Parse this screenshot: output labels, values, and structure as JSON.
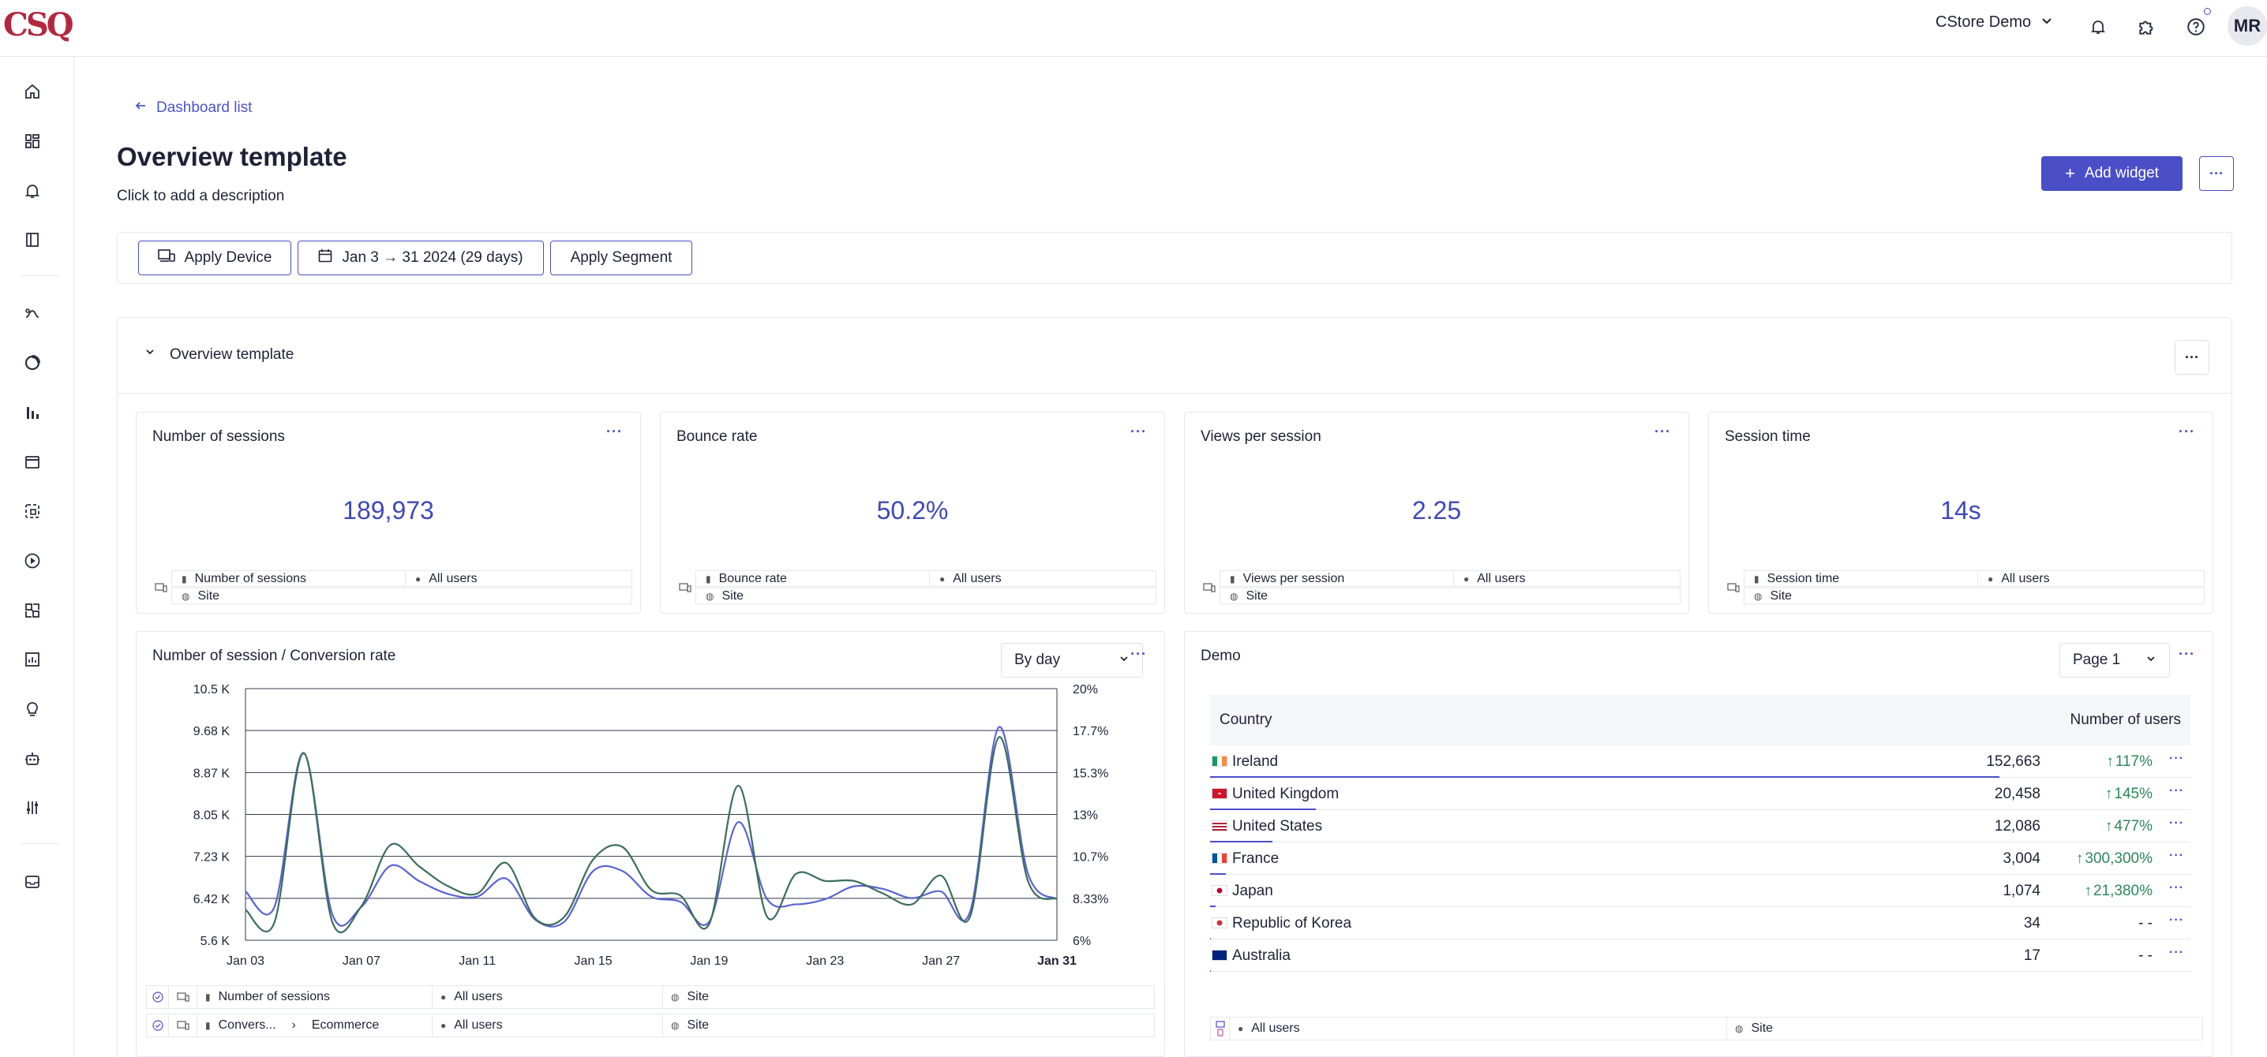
{
  "topbar": {
    "logo": "CSQ",
    "project": "CStore Demo",
    "avatar_initials": "MR",
    "icons": [
      "bell-icon",
      "puzzle-icon",
      "help-icon"
    ]
  },
  "sidebar": {
    "icons": [
      "home-icon",
      "dashboards-icon",
      "alerts-icon",
      "mapping-icon",
      "journey-icon",
      "zoning-icon",
      "analytics-icon",
      "page-comparator-icon",
      "impact-icon",
      "session-replay-icon",
      "merchandising-icon",
      "reports-icon",
      "insights-icon",
      "bot-icon",
      "settings-sliders-icon",
      "inbox-icon"
    ]
  },
  "header": {
    "back_label": "Dashboard list",
    "title": "Overview template",
    "description": "Click to add a description",
    "add_widget_label": "Add widget",
    "more_label": "···"
  },
  "filters": {
    "device_label": "Apply Device",
    "date_label": "Jan 3 → 31 2024 (29 days)",
    "segment_label": "Apply Segment"
  },
  "section": {
    "title": "Overview template",
    "more_label": "···"
  },
  "kpis": [
    {
      "title": "Number of sessions",
      "value": "189,973",
      "metric": "Number of sessions",
      "segment": "All users",
      "scope": "Site"
    },
    {
      "title": "Bounce rate",
      "value": "50.2%",
      "metric": "Bounce rate",
      "segment": "All users",
      "scope": "Site"
    },
    {
      "title": "Views per session",
      "value": "2.25",
      "metric": "Views per session",
      "segment": "All users",
      "scope": "Site"
    },
    {
      "title": "Session time",
      "value": "14s",
      "metric": "Session time",
      "segment": "All users",
      "scope": "Site"
    }
  ],
  "line_widget": {
    "title": "Number of session / Conversion rate",
    "granularity": "By day",
    "rows": [
      {
        "metric": "Number of sessions",
        "extra": "",
        "segment": "All users",
        "scope": "Site"
      },
      {
        "metric": "Convers...",
        "extra": "Ecommerce",
        "segment": "All users",
        "scope": "Site"
      }
    ]
  },
  "chart_data": {
    "type": "line",
    "title": "Number of session / Conversion rate",
    "x": [
      "Jan 03",
      "Jan 04",
      "Jan 05",
      "Jan 06",
      "Jan 07",
      "Jan 08",
      "Jan 09",
      "Jan 10",
      "Jan 11",
      "Jan 12",
      "Jan 13",
      "Jan 14",
      "Jan 15",
      "Jan 16",
      "Jan 17",
      "Jan 18",
      "Jan 19",
      "Jan 20",
      "Jan 21",
      "Jan 22",
      "Jan 23",
      "Jan 24",
      "Jan 25",
      "Jan 26",
      "Jan 27",
      "Jan 28",
      "Jan 29",
      "Jan 30",
      "Jan 31"
    ],
    "x_ticks": [
      "Jan 03",
      "Jan 07",
      "Jan 11",
      "Jan 15",
      "Jan 19",
      "Jan 23",
      "Jan 27",
      "Jan 31"
    ],
    "y_left_ticks": [
      "10.5 K",
      "9.68 K",
      "8.87 K",
      "8.05 K",
      "7.23 K",
      "6.42 K",
      "5.6 K"
    ],
    "y_right_ticks": [
      "20%",
      "17.7%",
      "15.3%",
      "13%",
      "10.7%",
      "8.33%",
      "6%"
    ],
    "ylim_left": [
      5600,
      10500
    ],
    "ylim_right": [
      6,
      20
    ],
    "series": [
      {
        "name": "Number of sessions",
        "axis": "left",
        "color": "#5b63d3",
        "values": [
          6550,
          6250,
          9250,
          6100,
          6250,
          7050,
          6750,
          6500,
          6450,
          6800,
          6000,
          5960,
          6950,
          6950,
          6450,
          6350,
          5960,
          7900,
          6400,
          6300,
          6400,
          6650,
          6600,
          6420,
          6550,
          6150,
          9750,
          6900,
          6400
        ]
      },
      {
        "name": "Conversion rate",
        "axis": "right",
        "color": "#3b6e5a",
        "values": [
          7.7,
          7.0,
          16.4,
          7.0,
          7.9,
          11.3,
          10.1,
          9.0,
          8.6,
          10.3,
          7.2,
          7.3,
          10.5,
          11.2,
          8.8,
          8.5,
          6.9,
          14.6,
          7.3,
          9.7,
          9.3,
          9.3,
          8.6,
          8.0,
          9.6,
          7.3,
          17.3,
          9.3,
          8.3
        ]
      }
    ]
  },
  "demo_widget": {
    "title": "Demo",
    "page_label": "Page 1",
    "col_country": "Country",
    "col_users": "Number of users",
    "rows": [
      {
        "country": "Ireland",
        "users": "152,663",
        "delta": "117%",
        "up": true,
        "share": 1.0,
        "flag": "ie"
      },
      {
        "country": "United Kingdom",
        "users": "20,458",
        "delta": "145%",
        "up": true,
        "share": 0.134,
        "flag": "gb"
      },
      {
        "country": "United States",
        "users": "12,086",
        "delta": "477%",
        "up": true,
        "share": 0.079,
        "flag": "us"
      },
      {
        "country": "France",
        "users": "3,004",
        "delta": "300,300%",
        "up": true,
        "share": 0.02,
        "flag": "fr"
      },
      {
        "country": "Japan",
        "users": "1,074",
        "delta": "21,380%",
        "up": true,
        "share": 0.007,
        "flag": "jp"
      },
      {
        "country": "Republic of Korea",
        "users": "34",
        "delta": "- -",
        "up": false,
        "share": 0.0002,
        "flag": "kr"
      },
      {
        "country": "Australia",
        "users": "17",
        "delta": "- -",
        "up": false,
        "share": 0.0001,
        "flag": "au"
      }
    ],
    "footer_segment": "All users",
    "footer_scope": "Site"
  },
  "colors": {
    "accent": "#4a4ec7",
    "kpi": "#3f49b8",
    "positive": "#2d8659",
    "logo": "#b3283f"
  }
}
